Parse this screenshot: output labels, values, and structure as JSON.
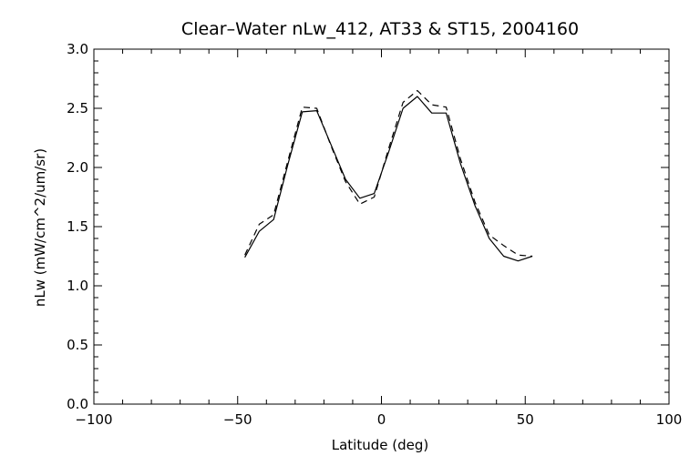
{
  "chart_data": {
    "type": "line",
    "title": "Clear–Water nLw_412, AT33 & ST15, 2004160",
    "xlabel": "Latitude (deg)",
    "ylabel": "nLw (mW/cm^2/um/sr)",
    "xlim": [
      -100,
      100
    ],
    "ylim": [
      0.0,
      3.0
    ],
    "xticks": [
      -100,
      -50,
      0,
      50,
      100
    ],
    "xtick_labels": [
      "−100",
      "−50",
      "0",
      "50",
      "100"
    ],
    "yticks": [
      0.0,
      0.5,
      1.0,
      1.5,
      2.0,
      2.5,
      3.0
    ],
    "ytick_labels": [
      "0.0",
      "0.5",
      "1.0",
      "1.5",
      "2.0",
      "2.5",
      "3.0"
    ],
    "grid": false,
    "legend": "none",
    "series": [
      {
        "style": "solid",
        "color": "#000000",
        "points": [
          [
            -47.5,
            1.24
          ],
          [
            -42.5,
            1.46
          ],
          [
            -37.5,
            1.56
          ],
          [
            -32.5,
            2.03
          ],
          [
            -27.5,
            2.47
          ],
          [
            -22.5,
            2.48
          ],
          [
            -17.5,
            2.19
          ],
          [
            -12.5,
            1.9
          ],
          [
            -7.5,
            1.74
          ],
          [
            -2.5,
            1.78
          ],
          [
            2.5,
            2.13
          ],
          [
            7.5,
            2.5
          ],
          [
            12.5,
            2.6
          ],
          [
            17.5,
            2.46
          ],
          [
            22.5,
            2.46
          ],
          [
            27.5,
            2.03
          ],
          [
            32.5,
            1.68
          ],
          [
            37.5,
            1.4
          ],
          [
            42.5,
            1.25
          ],
          [
            47.5,
            1.21
          ],
          [
            52.5,
            1.25
          ]
        ]
      },
      {
        "style": "dashed",
        "color": "#000000",
        "points": [
          [
            -47.5,
            1.26
          ],
          [
            -42.5,
            1.52
          ],
          [
            -37.5,
            1.6
          ],
          [
            -32.5,
            2.06
          ],
          [
            -27.5,
            2.51
          ],
          [
            -22.5,
            2.5
          ],
          [
            -17.5,
            2.18
          ],
          [
            -12.5,
            1.88
          ],
          [
            -7.5,
            1.69
          ],
          [
            -2.5,
            1.75
          ],
          [
            2.5,
            2.16
          ],
          [
            7.5,
            2.55
          ],
          [
            12.5,
            2.65
          ],
          [
            17.5,
            2.53
          ],
          [
            22.5,
            2.51
          ],
          [
            27.5,
            2.07
          ],
          [
            32.5,
            1.71
          ],
          [
            37.5,
            1.43
          ],
          [
            42.5,
            1.34
          ],
          [
            47.5,
            1.26
          ],
          [
            52.5,
            1.25
          ]
        ]
      }
    ]
  }
}
